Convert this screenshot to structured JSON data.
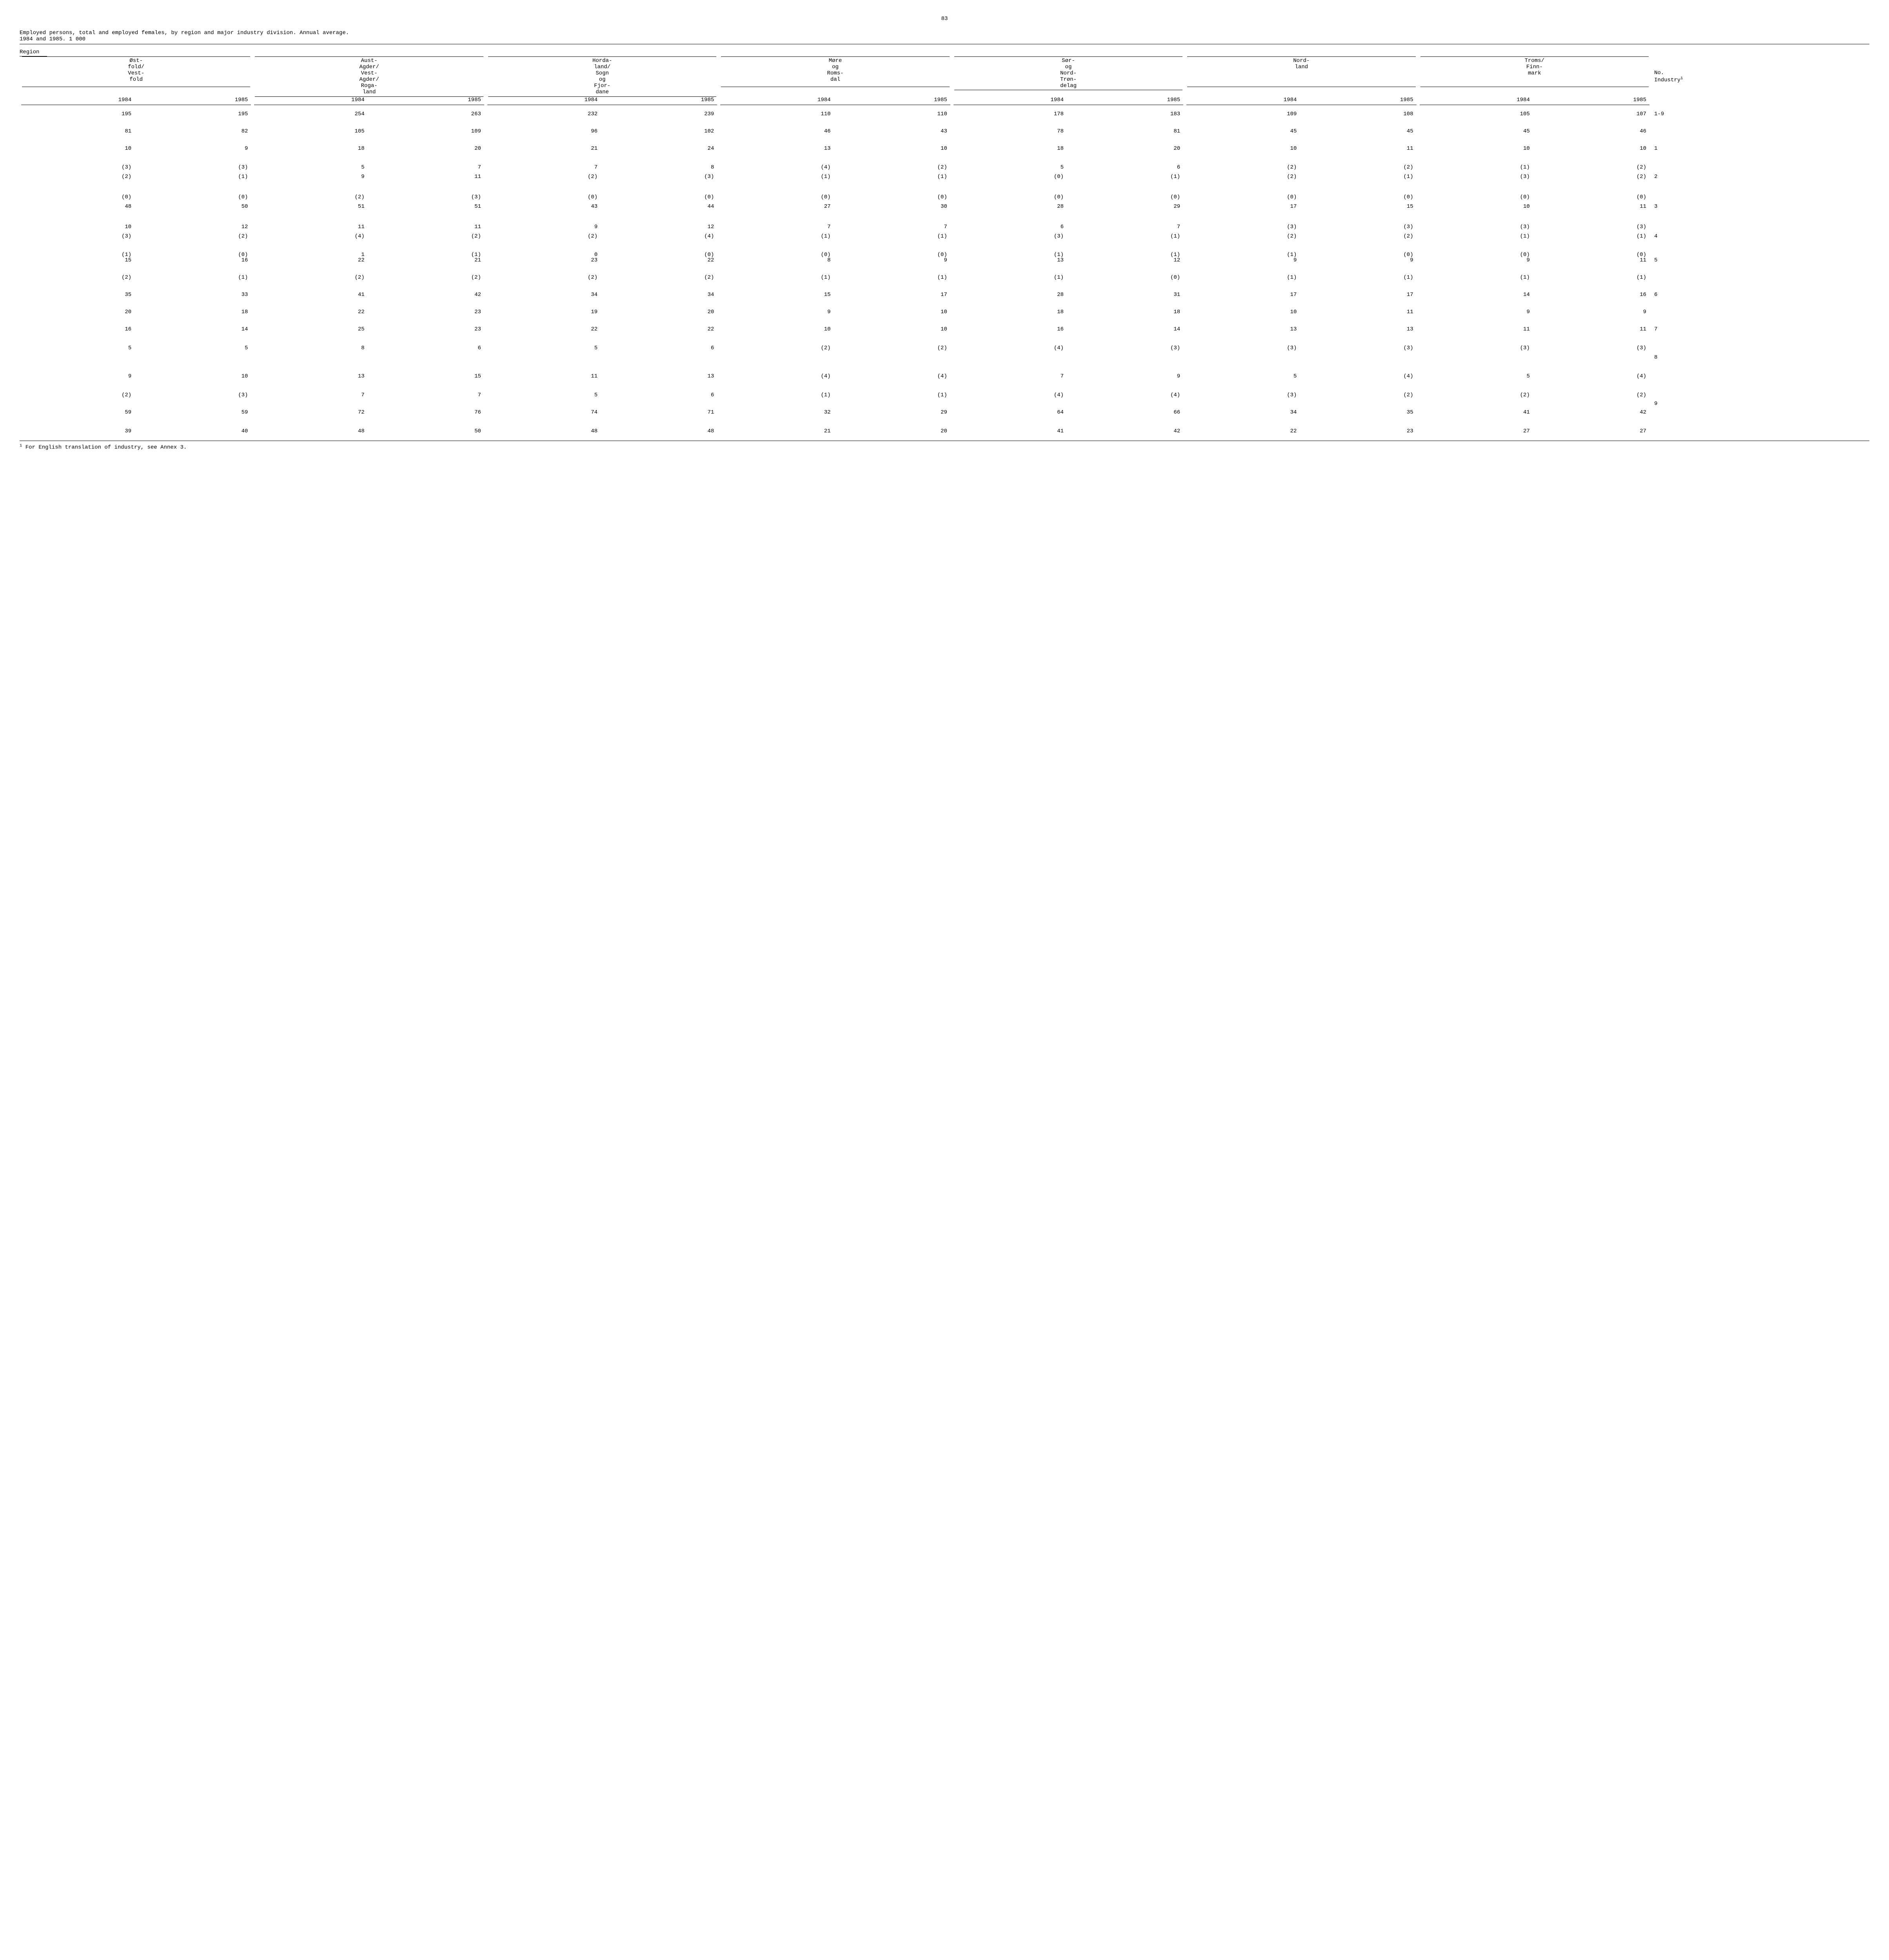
{
  "page_number": "83",
  "title_line1": "Employed persons, total and employed females, by region and major industry division.  Annual average.",
  "title_line2": "1984 and 1985.   1 000",
  "region_label": "Region",
  "column_groups": [
    "Øst-\nfold/\nVest-\nfold",
    "Aust-\nAgder/\nVest-\nAgder/\nRoga-\nland",
    "Horda-\nland/\nSogn\nog\nFjor-\ndane",
    "Møre\nog\nRoms-\ndal",
    "Sør-\nog\nNord-\nTrøn-\ndelag",
    "Nord-\nland",
    "Troms/\nFinn-\nmark"
  ],
  "last_col_header": "No.\nIndustry",
  "years": [
    "1984",
    "1985",
    "1984",
    "1985",
    "1984",
    "1985",
    "1984",
    "1985",
    "1984",
    "1985",
    "1984",
    "1985",
    "1984",
    "1985"
  ],
  "rows": [
    {
      "cells": [
        "195",
        "195",
        "254",
        "263",
        "232",
        "239",
        "110",
        "110",
        "178",
        "183",
        "109",
        "108",
        "105",
        "107"
      ],
      "ind": "1-9",
      "spacing": "normal"
    },
    {
      "cells": [
        "81",
        "82",
        "105",
        "109",
        "96",
        "102",
        "46",
        "43",
        "78",
        "81",
        "45",
        "45",
        "45",
        "46"
      ],
      "ind": "",
      "spacing": "normal"
    },
    {
      "cells": [
        "10",
        "9",
        "18",
        "20",
        "21",
        "24",
        "13",
        "10",
        "18",
        "20",
        "10",
        "11",
        "10",
        "10"
      ],
      "ind": "1",
      "spacing": "normal"
    },
    {
      "cells": [
        "(3)",
        "(3)",
        "5",
        "7",
        "7",
        "8",
        "(4)",
        "(2)",
        "5",
        "6",
        "(2)",
        "(2)",
        "(1)",
        "(2)"
      ],
      "ind": "",
      "spacing": "pair-top"
    },
    {
      "cells": [
        "(2)",
        "(1)",
        "9",
        "11",
        "(2)",
        "(3)",
        "(1)",
        "(1)",
        "(0)",
        "(1)",
        "(2)",
        "(1)",
        "(3)",
        "(2)"
      ],
      "ind": "2",
      "spacing": "pair-bot"
    },
    {
      "cells": [
        "(0)",
        "(0)",
        "(2)",
        "(3)",
        "(0)",
        "(0)",
        "(0)",
        "(0)",
        "(0)",
        "(0)",
        "(0)",
        "(0)",
        "(0)",
        "(0)"
      ],
      "ind": "",
      "spacing": "pair-top"
    },
    {
      "cells": [
        "48",
        "50",
        "51",
        "51",
        "43",
        "44",
        "27",
        "30",
        "28",
        "29",
        "17",
        "15",
        "10",
        "11"
      ],
      "ind": "3",
      "spacing": "pair-bot"
    },
    {
      "cells": [
        "10",
        "12",
        "11",
        "11",
        "9",
        "12",
        "7",
        "7",
        "6",
        "7",
        "(3)",
        "(3)",
        "(3)",
        "(3)"
      ],
      "ind": "",
      "spacing": "pair-top"
    },
    {
      "cells": [
        "(3)",
        "(2)",
        "(4)",
        "(2)",
        "(2)",
        "(4)",
        "(1)",
        "(1)",
        "(3)",
        "(1)",
        "(2)",
        "(2)",
        "(1)",
        "(1)"
      ],
      "ind": "4",
      "spacing": "pair-bot"
    },
    {
      "stacked": [
        [
          "(1)",
          "(0)",
          "1",
          "(1)",
          "0",
          "(0)",
          "(0)",
          "(0)",
          "(1)",
          "(1)",
          "(1)",
          "(0)",
          "(0)",
          "(0)"
        ],
        [
          "15",
          "16",
          "22",
          "21",
          "23",
          "22",
          "8",
          "9",
          "13",
          "12",
          "9",
          "9",
          "9",
          "11"
        ]
      ],
      "ind": "5",
      "spacing": "normal"
    },
    {
      "cells": [
        "(2)",
        "(1)",
        "(2)",
        "(2)",
        "(2)",
        "(2)",
        "(1)",
        "(1)",
        "(1)",
        "(0)",
        "(1)",
        "(1)",
        "(1)",
        "(1)"
      ],
      "ind": "",
      "spacing": "normal"
    },
    {
      "cells": [
        "35",
        "33",
        "41",
        "42",
        "34",
        "34",
        "15",
        "17",
        "28",
        "31",
        "17",
        "17",
        "14",
        "16"
      ],
      "ind": "6",
      "spacing": "normal"
    },
    {
      "cells": [
        "20",
        "18",
        "22",
        "23",
        "19",
        "20",
        "9",
        "10",
        "18",
        "18",
        "10",
        "11",
        "9",
        "9"
      ],
      "ind": "",
      "spacing": "normal"
    },
    {
      "cells": [
        "16",
        "14",
        "25",
        "23",
        "22",
        "22",
        "10",
        "10",
        "16",
        "14",
        "13",
        "13",
        "11",
        "11"
      ],
      "ind": "7",
      "spacing": "normal"
    },
    {
      "cells": [
        "5",
        "5",
        "8",
        "6",
        "5",
        "6",
        "(2)",
        "(2)",
        "(4)",
        "(3)",
        "(3)",
        "(3)",
        "(3)",
        "(3)"
      ],
      "ind": "",
      "spacing": "pair-top"
    },
    {
      "cells": [
        "",
        "",
        "",
        "",
        "",
        "",
        "",
        "",
        "",
        "",
        "",
        "",
        "",
        ""
      ],
      "ind": "8",
      "spacing": "pair-bot"
    },
    {
      "cells": [
        "9",
        "10",
        "13",
        "15",
        "11",
        "13",
        "(4)",
        "(4)",
        "7",
        "9",
        "5",
        "(4)",
        "5",
        "(4)"
      ],
      "ind": "",
      "spacing": "normal"
    },
    {
      "cells": [
        "(2)",
        "(3)",
        "7",
        "7",
        "5",
        "6",
        "(1)",
        "(1)",
        "(4)",
        "(4)",
        "(3)",
        "(2)",
        "(2)",
        "(2)"
      ],
      "ind": "",
      "spacing": "pair-top"
    },
    {
      "cells": [
        "",
        "",
        "",
        "",
        "",
        "",
        "",
        "",
        "",
        "",
        "",
        "",
        "",
        ""
      ],
      "ind": "9",
      "spacing": "tight"
    },
    {
      "cells": [
        "59",
        "59",
        "72",
        "76",
        "74",
        "71",
        "32",
        "29",
        "64",
        "66",
        "34",
        "35",
        "41",
        "42"
      ],
      "ind": "",
      "spacing": "pair-bot"
    },
    {
      "cells": [
        "39",
        "40",
        "48",
        "50",
        "48",
        "48",
        "21",
        "20",
        "41",
        "42",
        "22",
        "23",
        "27",
        "27"
      ],
      "ind": "",
      "spacing": "normal"
    }
  ],
  "footnote": "For English translation of industry, see Annex 3.",
  "footnote_marker": "1"
}
